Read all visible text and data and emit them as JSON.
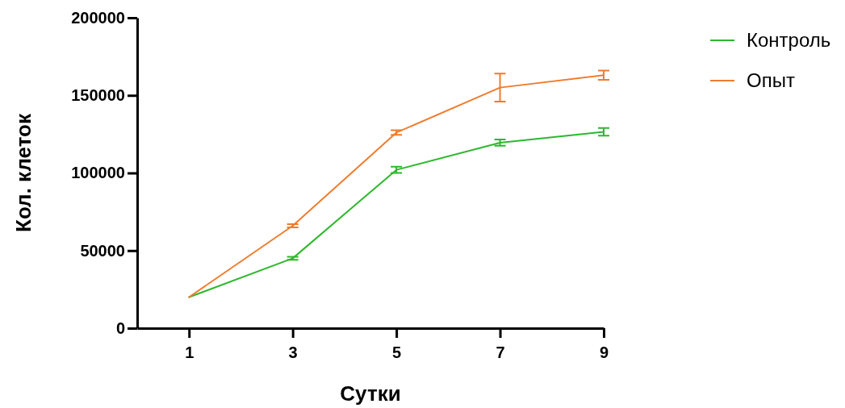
{
  "chart_data": {
    "type": "line",
    "xlabel": "Сутки",
    "ylabel": "Кол. клеток",
    "x": [
      1,
      3,
      5,
      7,
      9
    ],
    "xlim": [
      0,
      9
    ],
    "xticks": [
      1,
      3,
      5,
      7,
      9
    ],
    "ylim": [
      0,
      200000
    ],
    "yticks": [
      0,
      50000,
      100000,
      150000,
      200000
    ],
    "legend": "right",
    "marker": "none",
    "series": [
      {
        "name": "Контроль",
        "color": "#2db82d",
        "values": [
          20000,
          45000,
          102000,
          119500,
          126500
        ],
        "errors": [
          null,
          1000,
          2000,
          2000,
          2500
        ]
      },
      {
        "name": "Опыт",
        "color": "#f07c2c",
        "values": [
          20000,
          66000,
          126000,
          155000,
          163000
        ],
        "errors": [
          null,
          1000,
          1500,
          9000,
          3000
        ]
      }
    ]
  }
}
